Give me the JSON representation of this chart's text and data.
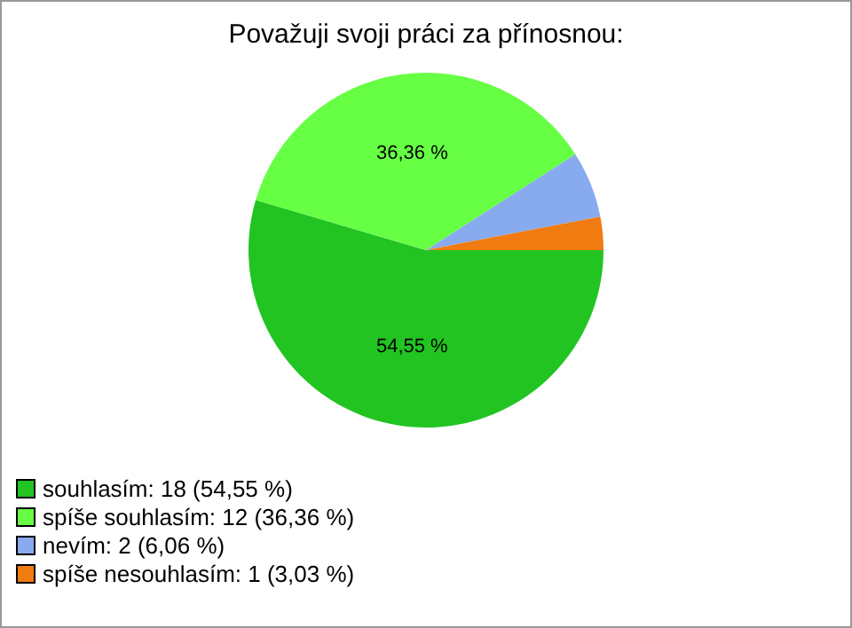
{
  "chart_data": {
    "type": "pie",
    "title": "Považuji svoji práci za přínosnou:",
    "categories": [
      "souhlasím: 18 (54,55 %)",
      "spíše souhlasím: 12 (36,36 %)",
      "nevím: 2 (6,06 %)",
      "spíše nesouhlasím: 1 (3,03 %)"
    ],
    "values": [
      54.55,
      36.36,
      6.06,
      3.03
    ],
    "colors": [
      "#22c422",
      "#66ff44",
      "#88aaee",
      "#f07b10"
    ],
    "value_labels": [
      "54,55 %",
      "36,36 %",
      null,
      null
    ],
    "legend": "bottom left"
  }
}
